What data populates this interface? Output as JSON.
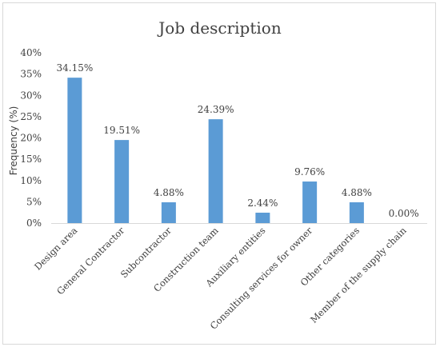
{
  "chart_data": {
    "type": "bar",
    "title": "Job description",
    "xlabel": "",
    "ylabel": "Frequency (%)",
    "ylim": [
      0,
      40
    ],
    "yticks": [
      "0%",
      "5%",
      "10%",
      "15%",
      "20%",
      "25%",
      "30%",
      "35%",
      "40%"
    ],
    "grid": false,
    "legend": "none",
    "bar_color": "#5b9bd5",
    "categories": [
      "Design area",
      "General Contractor",
      "Subcontractor",
      "Construction team",
      "Auxiliary entities",
      "Consulting services for owner",
      "Other categories",
      "Member of the supply chain"
    ],
    "values": [
      34.15,
      19.51,
      4.88,
      24.39,
      2.44,
      9.76,
      4.88,
      0.0
    ],
    "data_labels": [
      "34.15%",
      "19.51%",
      "4.88%",
      "24.39%",
      "2.44%",
      "9.76%",
      "4.88%",
      "0.00%"
    ]
  }
}
